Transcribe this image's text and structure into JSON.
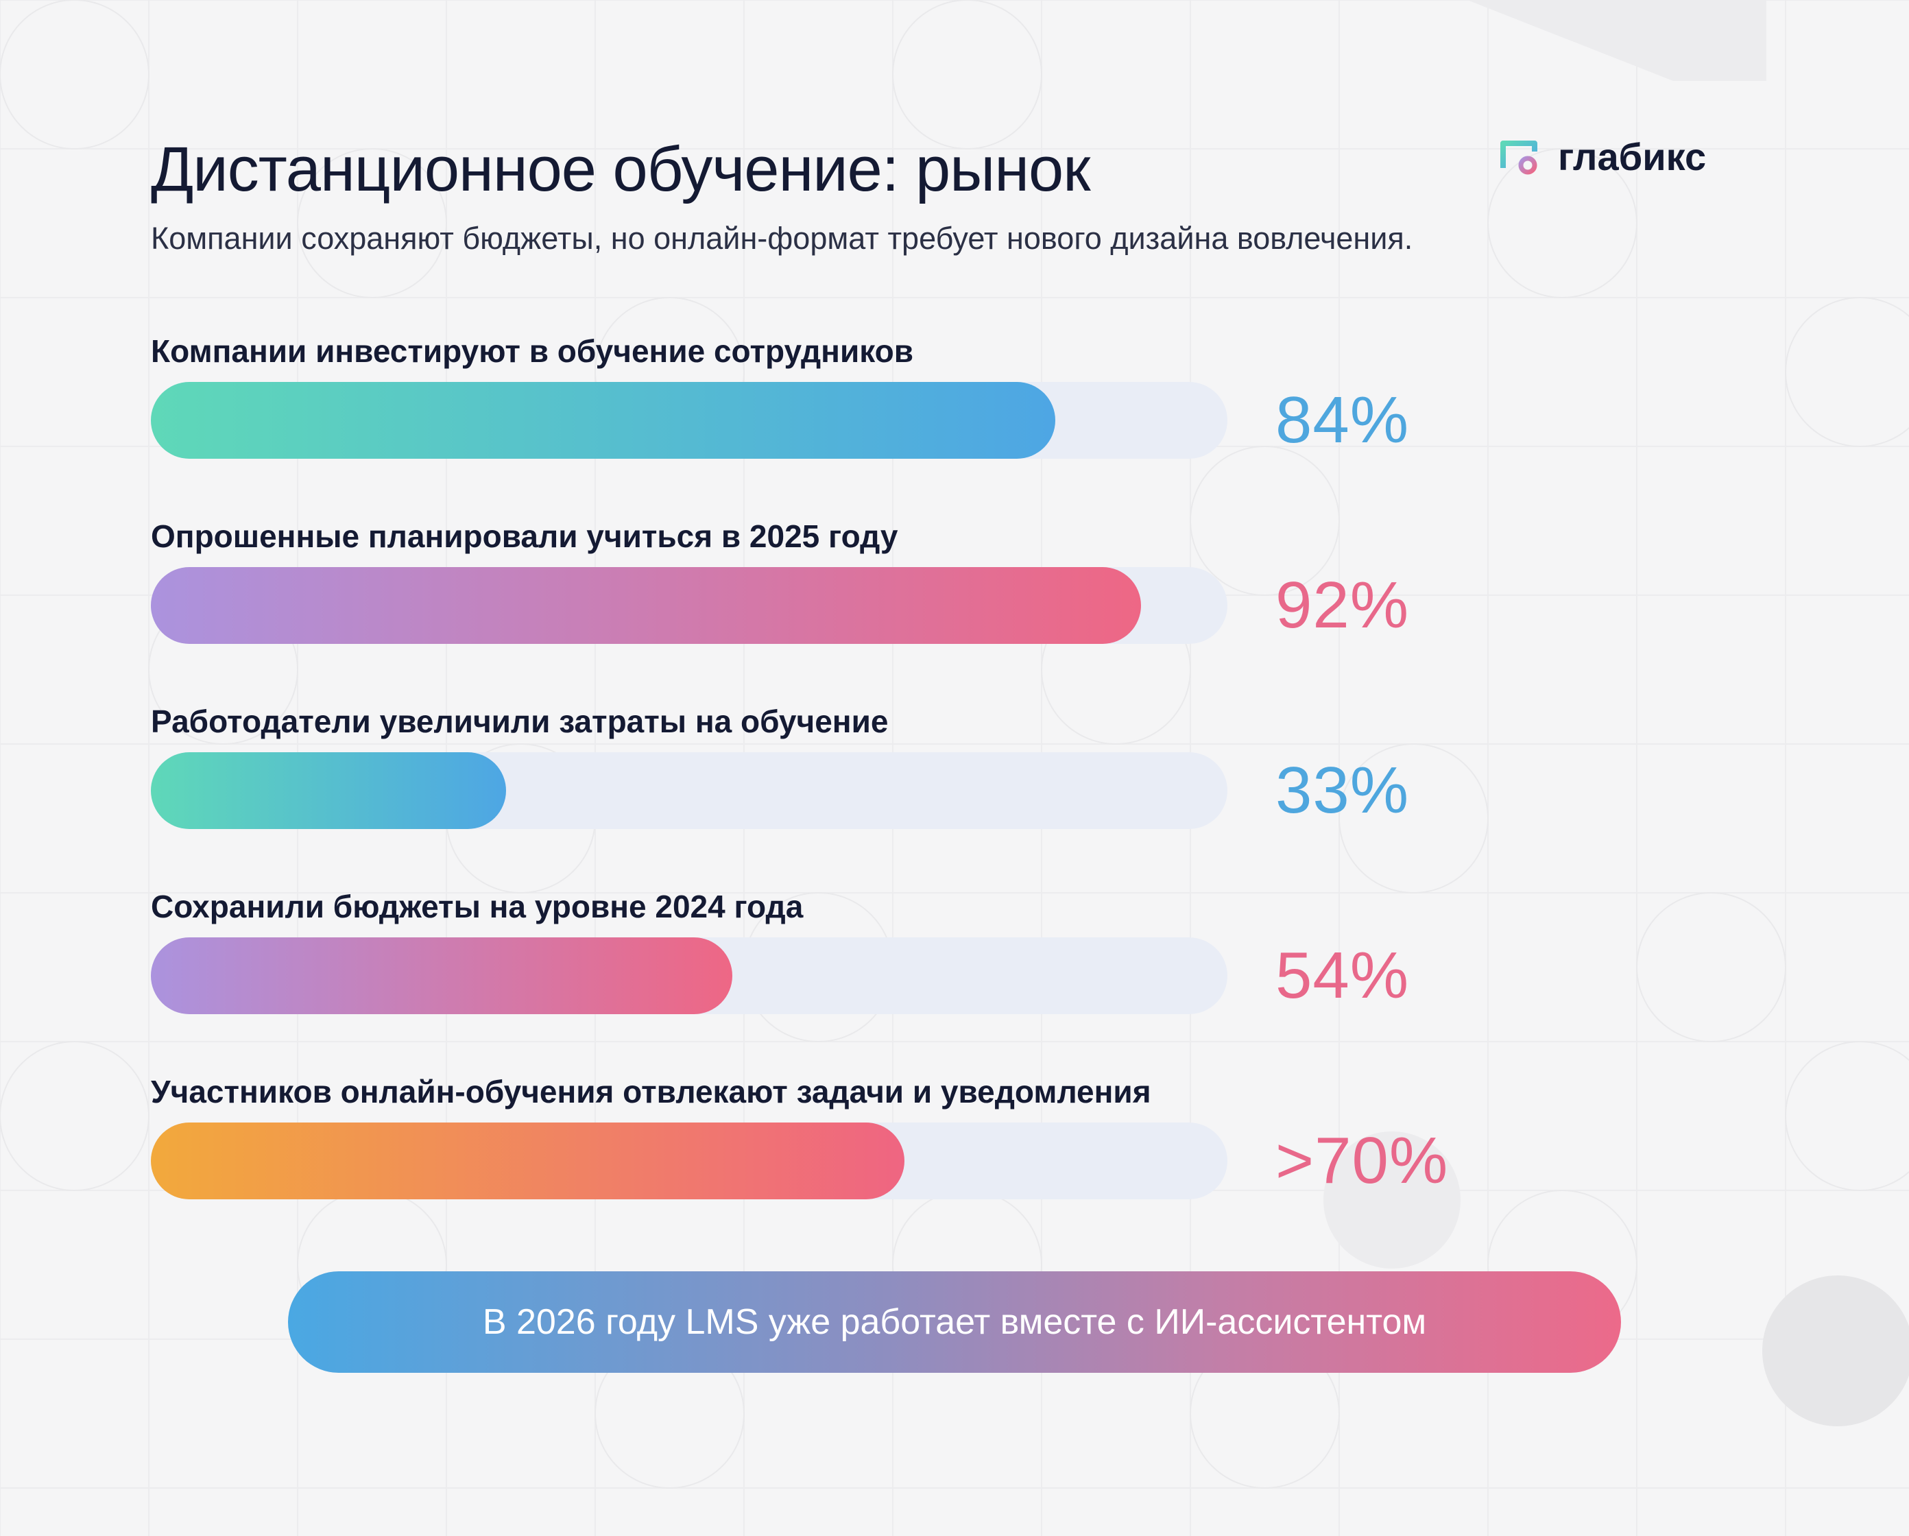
{
  "header": {
    "title": "Дистанционное обучение: рынок",
    "subtitle": "Компании сохраняют бюджеты, но онлайн-формат требует нового дизайна вовлечения."
  },
  "logo": {
    "name": "глабикс",
    "icon": "glabix-logo-icon"
  },
  "chart_data": {
    "type": "bar",
    "orientation": "horizontal",
    "xlim": [
      0,
      100
    ],
    "categories": [
      "Компании инвестируют в обучение сотрудников",
      "Опрошенные планировали учиться в 2025 году",
      "Работодатели увеличили затраты на обучение",
      "Сохранили бюджеты на уровне 2024 года",
      "Участников онлайн-обучения отвлекают задачи и уведомления"
    ],
    "values": [
      84,
      92,
      33,
      54,
      70
    ],
    "value_labels": [
      "84%",
      "92%",
      "33%",
      "54%",
      ">70%"
    ],
    "bar_gradients": [
      [
        "#5fd8b8",
        "#4ea6e4"
      ],
      [
        "#ab93de",
        "#ee6785"
      ],
      [
        "#5fd8b8",
        "#4ea6e4"
      ],
      [
        "#ab93de",
        "#ee6785"
      ],
      [
        "#f2a93c",
        "#ef6582"
      ]
    ],
    "value_colors": [
      "#4ea6de",
      "#e8688a",
      "#4ea6de",
      "#e8688a",
      "#e8688a"
    ],
    "track_color": "#e9edf6",
    "grid": false
  },
  "banner": {
    "text": "В 2026 году LMS уже работает вместе с ИИ-ассистентом"
  }
}
